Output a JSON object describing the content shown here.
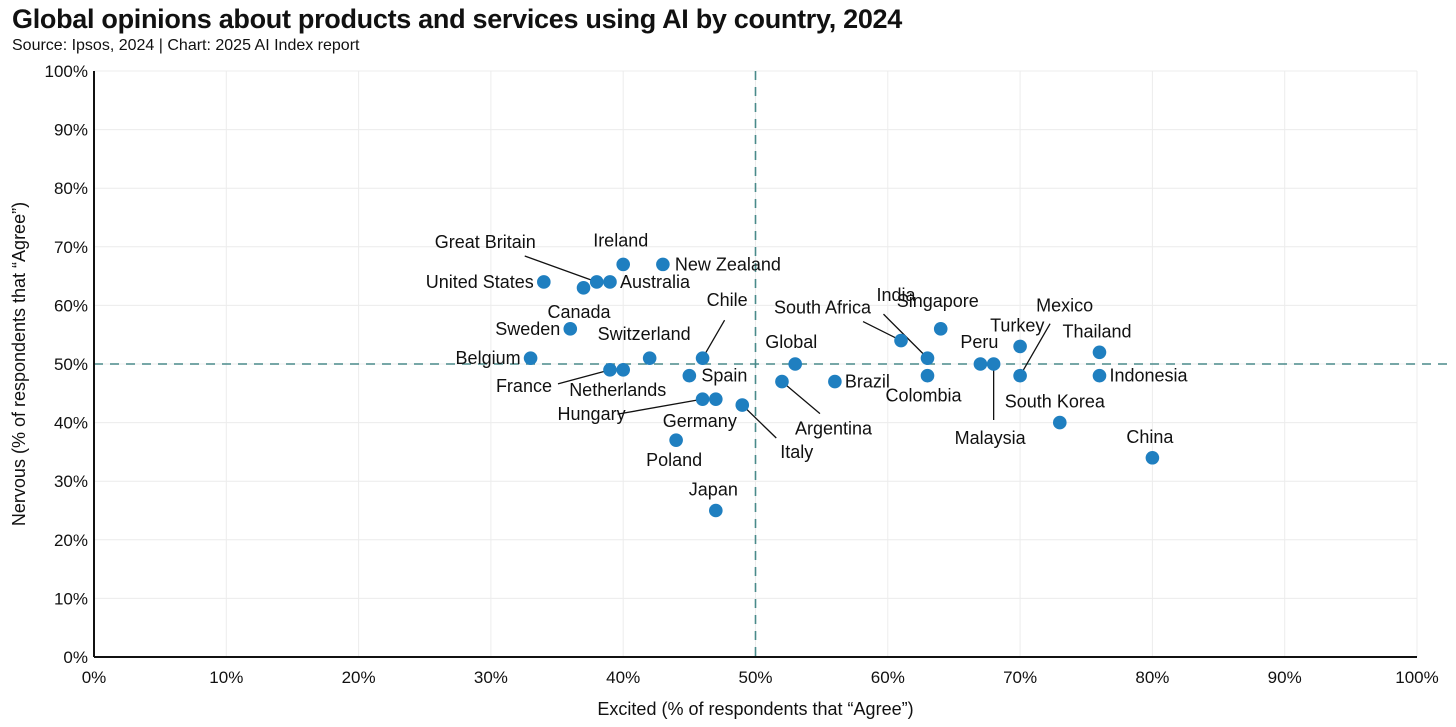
{
  "header": {
    "title": "Global opinions about products and services using AI by country, 2024",
    "subtitle": "Source: Ipsos, 2024 | Chart: 2025 AI Index report"
  },
  "chart_data": {
    "type": "scatter",
    "title": "Global opinions about products and services using AI by country, 2024",
    "subtitle": "Source: Ipsos, 2024 | Chart: 2025 AI Index report",
    "xlabel": "Excited (% of respondents that “Agree”)",
    "ylabel": "Nervous (% of respondents that “Agree”)",
    "xlim": [
      0,
      100
    ],
    "ylim": [
      0,
      100
    ],
    "x_ticks": [
      "0%",
      "10%",
      "20%",
      "30%",
      "40%",
      "50%",
      "60%",
      "70%",
      "80%",
      "90%",
      "100%"
    ],
    "y_ticks": [
      "0%",
      "10%",
      "20%",
      "30%",
      "40%",
      "50%",
      "60%",
      "70%",
      "80%",
      "90%",
      "100%"
    ],
    "grid": true,
    "reference_lines": {
      "x": 50,
      "y": 50
    },
    "point_color": "#1f7fc0",
    "reference_line_color": "#4a8a8a",
    "points": [
      {
        "label": "United States",
        "x": 34,
        "y": 64
      },
      {
        "label": "Canada",
        "x": 37,
        "y": 63
      },
      {
        "label": "Great Britain",
        "x": 38,
        "y": 64
      },
      {
        "label": "Australia",
        "x": 39,
        "y": 64
      },
      {
        "label": "Ireland",
        "x": 40,
        "y": 67
      },
      {
        "label": "New Zealand",
        "x": 43,
        "y": 67
      },
      {
        "label": "Sweden",
        "x": 36,
        "y": 56
      },
      {
        "label": "Belgium",
        "x": 33,
        "y": 51
      },
      {
        "label": "France",
        "x": 39,
        "y": 49
      },
      {
        "label": "Netherlands",
        "x": 40,
        "y": 49
      },
      {
        "label": "Switzerland",
        "x": 42,
        "y": 51
      },
      {
        "label": "Chile",
        "x": 46,
        "y": 51
      },
      {
        "label": "Spain",
        "x": 45,
        "y": 48
      },
      {
        "label": "Hungary",
        "x": 46,
        "y": 44
      },
      {
        "label": "Germany",
        "x": 47,
        "y": 44
      },
      {
        "label": "Italy",
        "x": 49,
        "y": 43
      },
      {
        "label": "Poland",
        "x": 44,
        "y": 37
      },
      {
        "label": "Japan",
        "x": 47,
        "y": 25
      },
      {
        "label": "Global",
        "x": 53,
        "y": 50
      },
      {
        "label": "Argentina",
        "x": 52,
        "y": 47
      },
      {
        "label": "Brazil",
        "x": 56,
        "y": 47
      },
      {
        "label": "South Africa",
        "x": 61,
        "y": 54
      },
      {
        "label": "India",
        "x": 63,
        "y": 51
      },
      {
        "label": "Colombia",
        "x": 63,
        "y": 48
      },
      {
        "label": "Singapore",
        "x": 64,
        "y": 56
      },
      {
        "label": "Peru",
        "x": 67,
        "y": 50
      },
      {
        "label": "Malaysia",
        "x": 68,
        "y": 50
      },
      {
        "label": "Turkey",
        "x": 70,
        "y": 53
      },
      {
        "label": "Mexico",
        "x": 70,
        "y": 48
      },
      {
        "label": "South Korea",
        "x": 73,
        "y": 40
      },
      {
        "label": "Thailand",
        "x": 76,
        "y": 52
      },
      {
        "label": "Indonesia",
        "x": 76,
        "y": 48
      },
      {
        "label": "China",
        "x": 80,
        "y": 34
      }
    ]
  }
}
